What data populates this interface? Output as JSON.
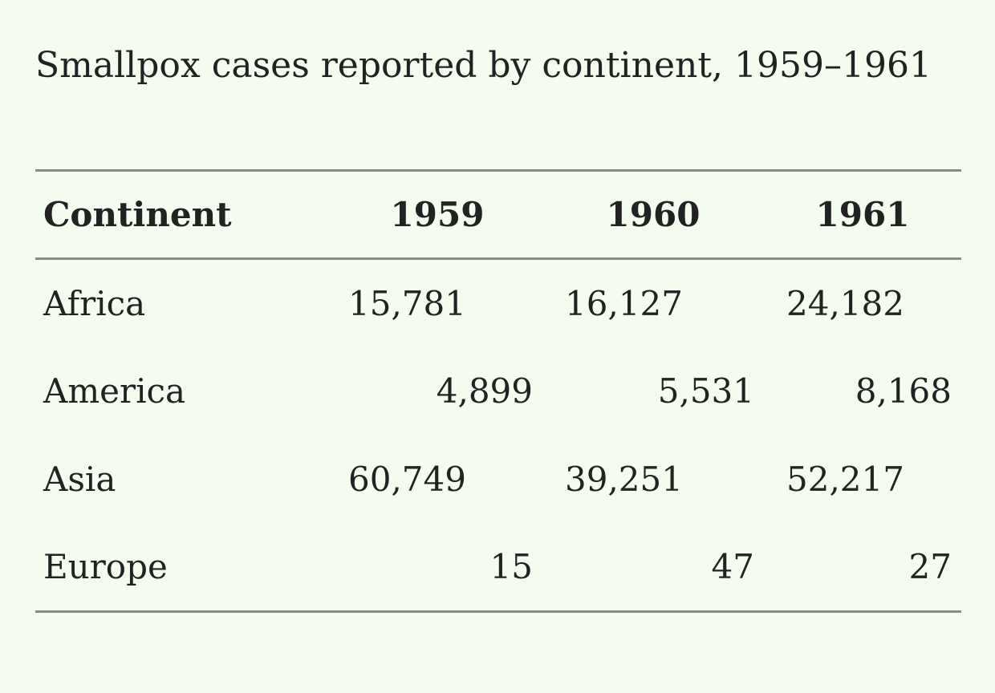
{
  "title": "Smallpox cases reported by continent, 1959–1961",
  "table": {
    "headers": [
      "Continent",
      "1959",
      "1960",
      "1961"
    ],
    "rows": [
      {
        "continent": "Africa",
        "y1959": "15,781",
        "y1960": "16,127",
        "y1961": "24,182"
      },
      {
        "continent": "America",
        "y1959": "4,899",
        "y1960": "5,531",
        "y1961": "8,168"
      },
      {
        "continent": "Asia",
        "y1959": "60,749",
        "y1960": "39,251",
        "y1961": "52,217"
      },
      {
        "continent": "Europe",
        "y1959": "15",
        "y1960": "47",
        "y1961": "27"
      }
    ]
  },
  "colors": {
    "background": "#f3fcef",
    "text": "#222222",
    "rule": "#8a8a8a"
  }
}
